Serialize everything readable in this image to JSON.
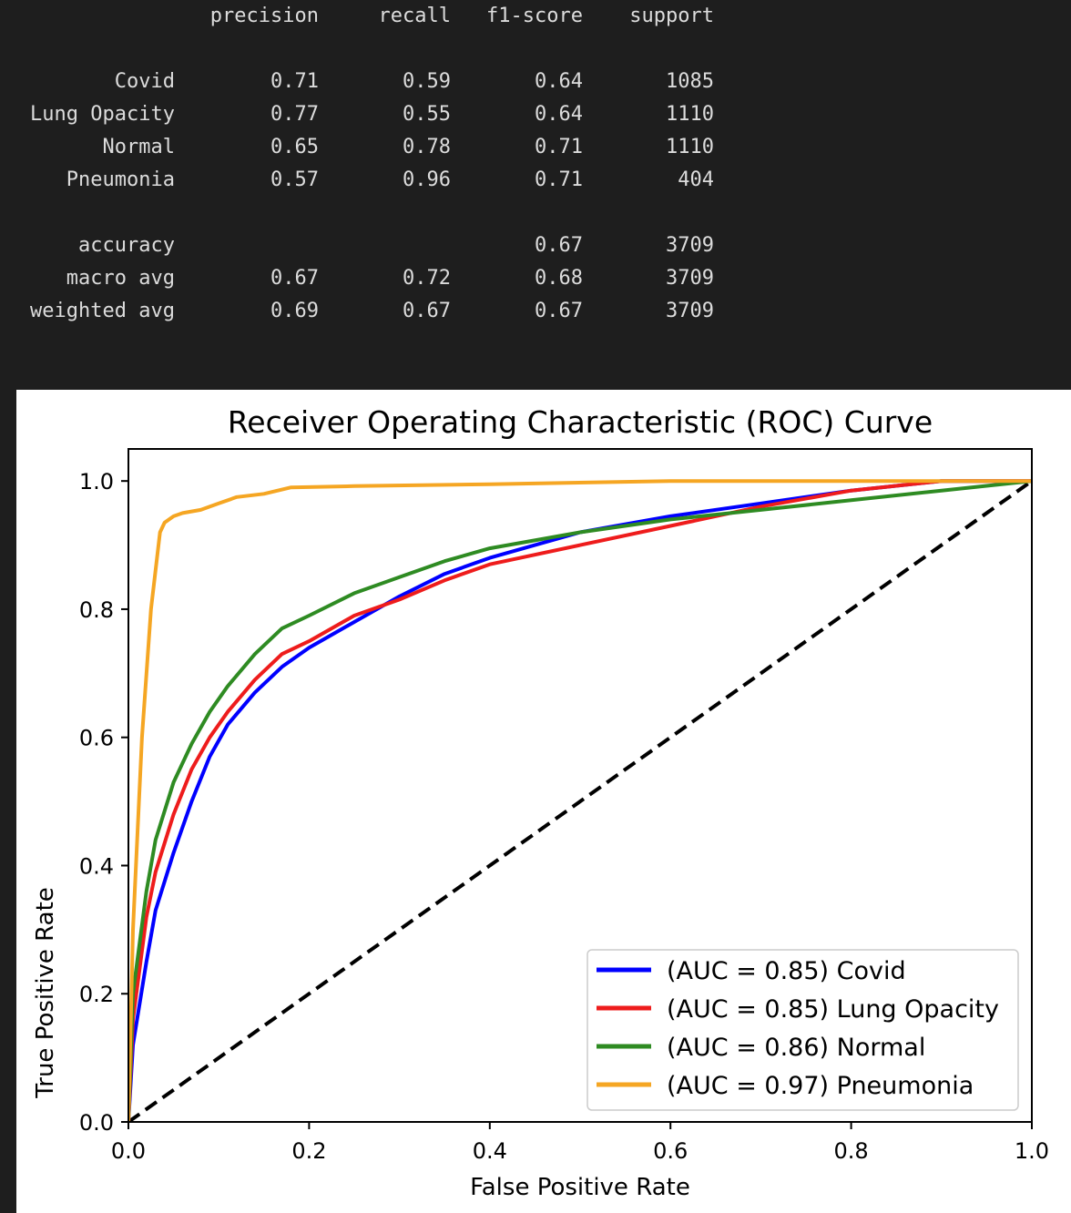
{
  "report": {
    "headers": [
      "precision",
      "recall",
      "f1-score",
      "support"
    ],
    "rows": [
      {
        "label": "Covid",
        "precision": "0.71",
        "recall": "0.59",
        "f1": "0.64",
        "support": "1085"
      },
      {
        "label": "Lung Opacity",
        "precision": "0.77",
        "recall": "0.55",
        "f1": "0.64",
        "support": "1110"
      },
      {
        "label": "Normal",
        "precision": "0.65",
        "recall": "0.78",
        "f1": "0.71",
        "support": "1110"
      },
      {
        "label": "Pneumonia",
        "precision": "0.57",
        "recall": "0.96",
        "f1": "0.71",
        "support": "404"
      },
      {
        "label": "accuracy",
        "precision": "",
        "recall": "",
        "f1": "0.67",
        "support": "3709"
      },
      {
        "label": "macro avg",
        "precision": "0.67",
        "recall": "0.72",
        "f1": "0.68",
        "support": "3709"
      },
      {
        "label": "weighted avg",
        "precision": "0.69",
        "recall": "0.67",
        "f1": "0.67",
        "support": "3709"
      }
    ]
  },
  "chart_data": {
    "type": "line",
    "title": "Receiver Operating Characteristic (ROC) Curve",
    "xlabel": "False Positive Rate",
    "ylabel": "True Positive Rate",
    "xlim": [
      0.0,
      1.0
    ],
    "ylim": [
      0.0,
      1.05
    ],
    "xticks": [
      "0.0",
      "0.2",
      "0.4",
      "0.6",
      "0.8",
      "1.0"
    ],
    "yticks": [
      "0.0",
      "0.2",
      "0.4",
      "0.6",
      "0.8",
      "1.0"
    ],
    "grid": false,
    "legend_position": "lower-right",
    "series": [
      {
        "name": "(AUC = 0.85) Covid",
        "color": "#0000ff",
        "x": [
          0,
          0.005,
          0.02,
          0.03,
          0.05,
          0.07,
          0.09,
          0.11,
          0.14,
          0.17,
          0.2,
          0.25,
          0.3,
          0.35,
          0.4,
          0.5,
          0.6,
          0.7,
          0.8,
          0.9,
          1.0
        ],
        "y": [
          0,
          0.12,
          0.25,
          0.33,
          0.42,
          0.5,
          0.57,
          0.62,
          0.67,
          0.71,
          0.74,
          0.78,
          0.82,
          0.855,
          0.88,
          0.92,
          0.945,
          0.965,
          0.985,
          1.0,
          1.0
        ]
      },
      {
        "name": "(AUC = 0.85) Lung Opacity",
        "color": "#ee1c1c",
        "x": [
          0,
          0.005,
          0.02,
          0.03,
          0.05,
          0.07,
          0.09,
          0.11,
          0.14,
          0.17,
          0.2,
          0.25,
          0.3,
          0.35,
          0.4,
          0.5,
          0.6,
          0.7,
          0.8,
          0.9,
          1.0
        ],
        "y": [
          0,
          0.16,
          0.32,
          0.39,
          0.48,
          0.55,
          0.6,
          0.64,
          0.69,
          0.73,
          0.75,
          0.79,
          0.815,
          0.845,
          0.87,
          0.9,
          0.93,
          0.96,
          0.985,
          1.0,
          1.0
        ]
      },
      {
        "name": "(AUC = 0.86) Normal",
        "color": "#2e8b22",
        "x": [
          0,
          0.005,
          0.02,
          0.03,
          0.05,
          0.07,
          0.09,
          0.11,
          0.14,
          0.17,
          0.2,
          0.25,
          0.3,
          0.35,
          0.4,
          0.5,
          0.6,
          0.7,
          0.8,
          0.9,
          1.0
        ],
        "y": [
          0,
          0.2,
          0.36,
          0.44,
          0.53,
          0.59,
          0.64,
          0.68,
          0.73,
          0.77,
          0.79,
          0.825,
          0.85,
          0.875,
          0.895,
          0.92,
          0.94,
          0.955,
          0.97,
          0.985,
          1.0
        ]
      },
      {
        "name": "(AUC = 0.97) Pneumonia",
        "color": "#f5a623",
        "x": [
          0,
          0.005,
          0.015,
          0.025,
          0.035,
          0.04,
          0.05,
          0.06,
          0.08,
          0.1,
          0.12,
          0.15,
          0.18,
          0.25,
          0.4,
          0.6,
          0.8,
          1.0
        ],
        "y": [
          0,
          0.3,
          0.6,
          0.8,
          0.92,
          0.935,
          0.945,
          0.95,
          0.955,
          0.965,
          0.975,
          0.98,
          0.99,
          0.992,
          0.995,
          1.0,
          1.0,
          1.0
        ]
      }
    ],
    "reference_line": {
      "x": [
        0,
        1
      ],
      "y": [
        0,
        1
      ],
      "color": "#000000",
      "style": "dashed"
    }
  }
}
